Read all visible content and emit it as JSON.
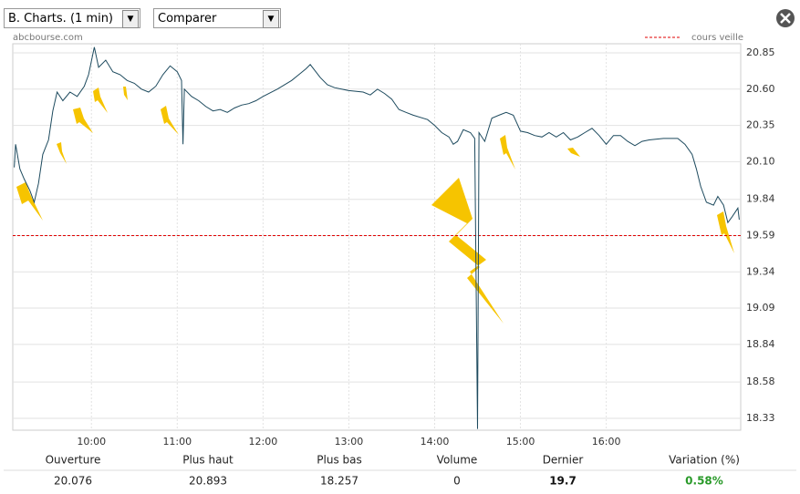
{
  "toolbar": {
    "period": "B. Charts. (1 min)",
    "compare": "Comparer"
  },
  "source": "abcbourse.com",
  "chart_data": {
    "type": "line",
    "reference": {
      "name": "cours veille",
      "value": 19.59,
      "color": "#e00000"
    },
    "xlim": [
      "09:05",
      "17:34"
    ],
    "xticks": [
      "10:00",
      "11:00",
      "12:00",
      "13:00",
      "14:00",
      "15:00",
      "16:00"
    ],
    "ylim": [
      18.248,
      20.913
    ],
    "yticks": [
      20.85,
      {
        "value": 20.6,
        "label": "20.60"
      },
      20.35,
      {
        "value": 20.1,
        "label": "20.10"
      },
      19.84,
      19.59,
      19.34,
      19.09,
      18.84,
      18.58,
      18.33
    ],
    "grid": true,
    "series": [
      {
        "color": "#1d4a5e",
        "x": [
          "09:06",
          "09:07",
          "09:10",
          "09:13",
          "09:17",
          "09:20",
          "09:23",
          "09:26",
          "09:30",
          "09:33",
          "09:36",
          "09:40",
          "09:45",
          "09:50",
          "09:55",
          "09:58",
          "10:02",
          "10:05",
          "10:10",
          "10:15",
          "10:20",
          "10:25",
          "10:30",
          "10:35",
          "10:40",
          "10:45",
          "10:50",
          "10:55",
          "11:00",
          "11:03",
          "11:04",
          "11:05",
          "11:10",
          "11:15",
          "11:20",
          "11:25",
          "11:30",
          "11:35",
          "11:40",
          "11:45",
          "11:50",
          "11:55",
          "12:00",
          "12:10",
          "12:20",
          "12:25",
          "12:30",
          "12:33",
          "12:40",
          "12:45",
          "12:50",
          "13:00",
          "13:10",
          "13:15",
          "13:20",
          "13:25",
          "13:30",
          "13:35",
          "13:40",
          "13:45",
          "13:55",
          "14:00",
          "14:05",
          "14:10",
          "14:13",
          "14:16",
          "14:20",
          "14:25",
          "14:28",
          "14:30",
          "14:31",
          "14:35",
          "14:40",
          "14:45",
          "14:50",
          "14:55",
          "15:00",
          "15:05",
          "15:10",
          "15:15",
          "15:20",
          "15:25",
          "15:30",
          "15:35",
          "15:40",
          "15:45",
          "15:50",
          "15:55",
          "16:00",
          "16:05",
          "16:10",
          "16:15",
          "16:20",
          "16:25",
          "16:30",
          "16:40",
          "16:50",
          "16:55",
          "17:00",
          "17:03",
          "17:06",
          "17:10",
          "17:15",
          "17:18",
          "17:22",
          "17:25",
          "17:28",
          "17:32",
          "17:33"
        ],
        "values": [
          20.06,
          20.22,
          20.05,
          19.98,
          19.9,
          19.82,
          19.95,
          20.15,
          20.25,
          20.45,
          20.58,
          20.52,
          20.58,
          20.55,
          20.62,
          20.7,
          20.89,
          20.75,
          20.8,
          20.72,
          20.7,
          20.66,
          20.64,
          20.6,
          20.58,
          20.62,
          20.7,
          20.76,
          20.72,
          20.66,
          20.22,
          20.6,
          20.55,
          20.52,
          20.48,
          20.45,
          20.46,
          20.44,
          20.47,
          20.49,
          20.5,
          20.52,
          20.55,
          20.6,
          20.66,
          20.7,
          20.74,
          20.77,
          20.68,
          20.63,
          20.61,
          20.59,
          20.58,
          20.56,
          20.6,
          20.57,
          20.53,
          20.46,
          20.44,
          20.42,
          20.39,
          20.35,
          20.3,
          20.27,
          20.22,
          20.24,
          20.32,
          20.3,
          20.26,
          18.257,
          20.3,
          20.24,
          20.4,
          20.42,
          20.44,
          20.42,
          20.31,
          20.3,
          20.28,
          20.27,
          20.3,
          20.27,
          20.3,
          20.25,
          20.27,
          20.3,
          20.33,
          20.28,
          20.22,
          20.28,
          20.28,
          20.24,
          20.21,
          20.24,
          20.25,
          20.26,
          20.26,
          20.22,
          20.15,
          20.05,
          19.93,
          19.82,
          19.8,
          19.86,
          19.8,
          19.68,
          19.72,
          19.78,
          19.7
        ]
      }
    ]
  },
  "stats": {
    "headers": [
      "Ouverture",
      "Plus haut",
      "Plus bas",
      "Volume",
      "Dernier",
      "Variation (%)"
    ],
    "values": [
      "20.076",
      "20.893",
      "18.257",
      "0",
      "19.7",
      "0.58%"
    ],
    "variation_color": "#2a9a2a"
  }
}
